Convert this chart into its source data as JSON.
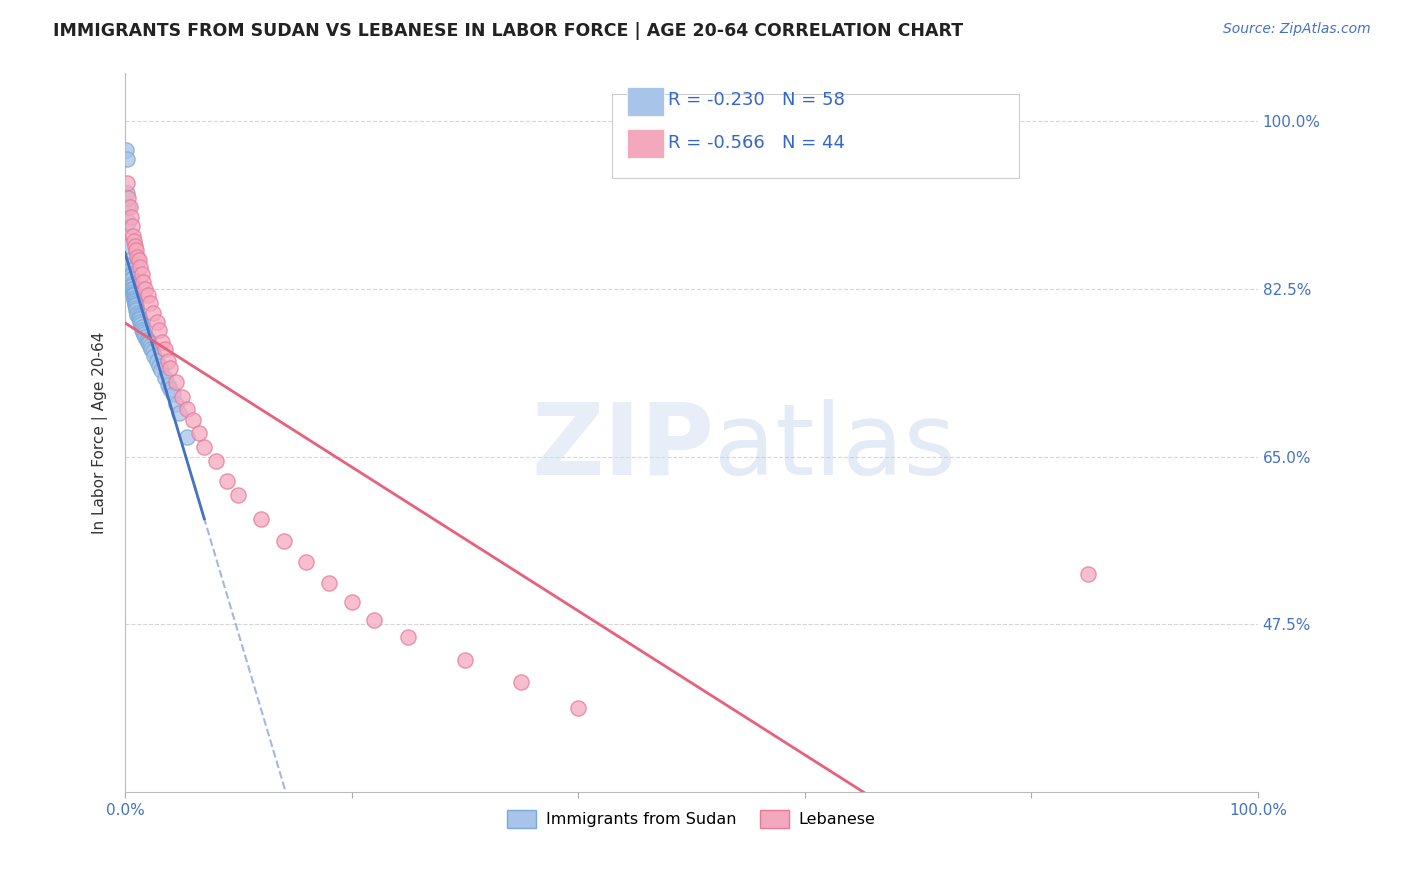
{
  "title": "IMMIGRANTS FROM SUDAN VS LEBANESE IN LABOR FORCE | AGE 20-64 CORRELATION CHART",
  "source": "Source: ZipAtlas.com",
  "ylabel": "In Labor Force | Age 20-64",
  "xlim": [
    0.0,
    1.0
  ],
  "ylim": [
    0.3,
    1.05
  ],
  "ytick_positions": [
    0.475,
    0.65,
    0.825,
    1.0
  ],
  "ytick_labels": [
    "47.5%",
    "65.0%",
    "82.5%",
    "100.0%"
  ],
  "sudan_color": "#a8c4e8",
  "sudan_edge_color": "#7aaad8",
  "lebanese_color": "#f4a8be",
  "lebanese_edge_color": "#e87898",
  "sudan_line_color": "#4472c4",
  "lebanese_line_color": "#e8607a",
  "sudan_dash_color": "#a0b8e0",
  "lebanese_dash_color": "#e0a0b0",
  "sudan_R": -0.23,
  "sudan_N": 58,
  "lebanese_R": -0.566,
  "lebanese_N": 44,
  "sudan_x": [
    0.001,
    0.002,
    0.002,
    0.003,
    0.003,
    0.003,
    0.004,
    0.004,
    0.004,
    0.005,
    0.005,
    0.005,
    0.006,
    0.006,
    0.006,
    0.006,
    0.007,
    0.007,
    0.007,
    0.008,
    0.008,
    0.008,
    0.008,
    0.009,
    0.009,
    0.009,
    0.01,
    0.01,
    0.01,
    0.011,
    0.011,
    0.012,
    0.012,
    0.013,
    0.013,
    0.014,
    0.015,
    0.015,
    0.016,
    0.017,
    0.018,
    0.019,
    0.02,
    0.021,
    0.022,
    0.023,
    0.025,
    0.026,
    0.028,
    0.03,
    0.032,
    0.035,
    0.038,
    0.04,
    0.042,
    0.045,
    0.048,
    0.055
  ],
  "sudan_y": [
    0.97,
    0.96,
    0.925,
    0.91,
    0.895,
    0.87,
    0.855,
    0.85,
    0.845,
    0.84,
    0.838,
    0.835,
    0.835,
    0.83,
    0.828,
    0.825,
    0.825,
    0.822,
    0.82,
    0.82,
    0.818,
    0.815,
    0.813,
    0.812,
    0.81,
    0.808,
    0.808,
    0.805,
    0.803,
    0.8,
    0.798,
    0.797,
    0.795,
    0.793,
    0.79,
    0.788,
    0.785,
    0.782,
    0.78,
    0.778,
    0.775,
    0.772,
    0.77,
    0.768,
    0.765,
    0.762,
    0.76,
    0.755,
    0.75,
    0.745,
    0.74,
    0.732,
    0.725,
    0.72,
    0.715,
    0.705,
    0.695,
    0.67
  ],
  "lebanese_x": [
    0.002,
    0.003,
    0.004,
    0.005,
    0.006,
    0.007,
    0.008,
    0.009,
    0.01,
    0.011,
    0.012,
    0.013,
    0.015,
    0.016,
    0.018,
    0.02,
    0.022,
    0.025,
    0.028,
    0.03,
    0.033,
    0.035,
    0.038,
    0.04,
    0.045,
    0.05,
    0.055,
    0.06,
    0.065,
    0.07,
    0.08,
    0.09,
    0.1,
    0.12,
    0.14,
    0.16,
    0.18,
    0.2,
    0.22,
    0.25,
    0.3,
    0.35,
    0.85,
    0.4
  ],
  "lebanese_y": [
    0.935,
    0.92,
    0.91,
    0.9,
    0.89,
    0.88,
    0.875,
    0.87,
    0.865,
    0.858,
    0.855,
    0.848,
    0.84,
    0.832,
    0.825,
    0.818,
    0.81,
    0.8,
    0.79,
    0.782,
    0.77,
    0.762,
    0.75,
    0.742,
    0.728,
    0.712,
    0.7,
    0.688,
    0.675,
    0.66,
    0.645,
    0.625,
    0.61,
    0.585,
    0.562,
    0.54,
    0.518,
    0.498,
    0.48,
    0.462,
    0.438,
    0.415,
    0.528,
    0.388
  ]
}
